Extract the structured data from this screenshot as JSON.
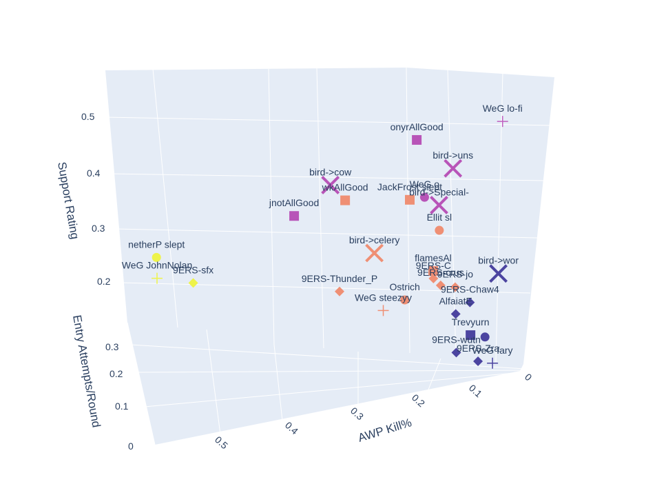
{
  "chart_data": {
    "type": "scatter3d",
    "axes": {
      "x": {
        "title": "AWP Kill%",
        "ticks": [
          "0",
          "0.1",
          "0.2",
          "0.3",
          "0.4",
          "0.5"
        ]
      },
      "y": {
        "title": "Entry Attempts/Round",
        "ticks": [
          "0",
          "0.1",
          "0.2",
          "0.3"
        ]
      },
      "z": {
        "title": "Support Rating",
        "ticks": [
          "0.2",
          "0.3",
          "0.4",
          "0.5"
        ]
      }
    },
    "colors": {
      "pane": "#e5ecf6",
      "grid": "#ffffff",
      "purple": "#b854b8",
      "salmon": "#ef8f74",
      "indigo": "#4b44a0",
      "yellow": "#eef34a",
      "magenta": "#c060c0"
    },
    "points": [
      {
        "label": "WeG lo-fi",
        "awp": 0.02,
        "entry": 0.18,
        "support": 0.56,
        "symbol": "cross",
        "color": "magenta"
      },
      {
        "label": "onyrAllGood",
        "awp": 0.14,
        "entry": 0.14,
        "support": 0.52,
        "symbol": "square",
        "color": "purple"
      },
      {
        "label": "bird->uns",
        "awp": 0.09,
        "entry": 0.14,
        "support": 0.48,
        "symbol": "x",
        "color": "purple"
      },
      {
        "label": "bird->cow",
        "awp": 0.26,
        "entry": 0.12,
        "support": 0.43,
        "symbol": "x",
        "color": "purple"
      },
      {
        "label": "WeG o",
        "awp": 0.13,
        "entry": 0.12,
        "support": 0.43,
        "symbol": "circle",
        "color": "purple"
      },
      {
        "label": "JackFrost slept",
        "awp": 0.15,
        "entry": 0.13,
        "support": 0.42,
        "symbol": "square",
        "color": "salmon"
      },
      {
        "label": "bird->Special-",
        "awp": 0.11,
        "entry": 0.12,
        "support": 0.42,
        "symbol": "x",
        "color": "purple"
      },
      {
        "label": "wkAllGood",
        "awp": 0.24,
        "entry": 0.11,
        "support": 0.41,
        "symbol": "square",
        "color": "salmon"
      },
      {
        "label": "Ellit sl",
        "awp": 0.11,
        "entry": 0.11,
        "support": 0.38,
        "symbol": "circle",
        "color": "salmon"
      },
      {
        "label": "jnotAllGood",
        "awp": 0.31,
        "entry": 0.12,
        "support": 0.37,
        "symbol": "square",
        "color": "purple"
      },
      {
        "label": "bird->celery",
        "awp": 0.2,
        "entry": 0.1,
        "support": 0.33,
        "symbol": "x",
        "color": "salmon"
      },
      {
        "label": "flamesAl",
        "awp": 0.12,
        "entry": 0.07,
        "support": 0.32,
        "symbol": "square",
        "color": "salmon"
      },
      {
        "label": "bird->wor",
        "awp": 0.03,
        "entry": 0.07,
        "support": 0.33,
        "symbol": "x",
        "color": "indigo"
      },
      {
        "label": "9ERS-C",
        "awp": 0.12,
        "entry": 0.06,
        "support": 0.31,
        "symbol": "diamond",
        "color": "salmon"
      },
      {
        "label": "9ERS-crus",
        "awp": 0.11,
        "entry": 0.06,
        "support": 0.3,
        "symbol": "diamond",
        "color": "salmon"
      },
      {
        "label": "9ERS-jo",
        "awp": 0.09,
        "entry": 0.06,
        "support": 0.3,
        "symbol": "diamond",
        "color": "salmon"
      },
      {
        "label": "Ostrich",
        "awp": 0.16,
        "entry": 0.05,
        "support": 0.27,
        "symbol": "circle",
        "color": "salmon"
      },
      {
        "label": "9ERS-Chaw4",
        "awp": 0.07,
        "entry": 0.05,
        "support": 0.28,
        "symbol": "diamond",
        "color": "indigo"
      },
      {
        "label": "9ERS-Thunder_P",
        "awp": 0.25,
        "entry": 0.05,
        "support": 0.27,
        "symbol": "diamond",
        "color": "salmon"
      },
      {
        "label": "WeG steezyy",
        "awp": 0.19,
        "entry": 0.04,
        "support": 0.25,
        "symbol": "cross",
        "color": "salmon"
      },
      {
        "label": "AlfaiatE",
        "awp": 0.09,
        "entry": 0.04,
        "support": 0.26,
        "symbol": "diamond",
        "color": "indigo"
      },
      {
        "label": "Trevyurn",
        "awp": 0.07,
        "entry": 0.03,
        "support": 0.23,
        "symbol": "square",
        "color": "indigo"
      },
      {
        "label": "",
        "awp": 0.05,
        "entry": 0.03,
        "support": 0.23,
        "symbol": "circle",
        "color": "indigo"
      },
      {
        "label": "9ERS-wutn",
        "awp": 0.09,
        "entry": 0.02,
        "support": 0.2,
        "symbol": "diamond",
        "color": "indigo"
      },
      {
        "label": "9ERS-Zra",
        "awp": 0.06,
        "entry": 0.02,
        "support": 0.19,
        "symbol": "diamond",
        "color": "indigo"
      },
      {
        "label": "WeG fary",
        "awp": 0.04,
        "entry": 0.02,
        "support": 0.19,
        "symbol": "cross",
        "color": "indigo"
      },
      {
        "label": "netherP slept",
        "awp": 0.5,
        "entry": 0.12,
        "support": 0.27,
        "symbol": "circle",
        "color": "yellow"
      },
      {
        "label": "WeG JohnNolan",
        "awp": 0.5,
        "entry": 0.1,
        "support": 0.24,
        "symbol": "cross",
        "color": "yellow"
      },
      {
        "label": "9ERS-sfx",
        "awp": 0.45,
        "entry": 0.1,
        "support": 0.24,
        "symbol": "diamond",
        "color": "yellow"
      }
    ]
  }
}
